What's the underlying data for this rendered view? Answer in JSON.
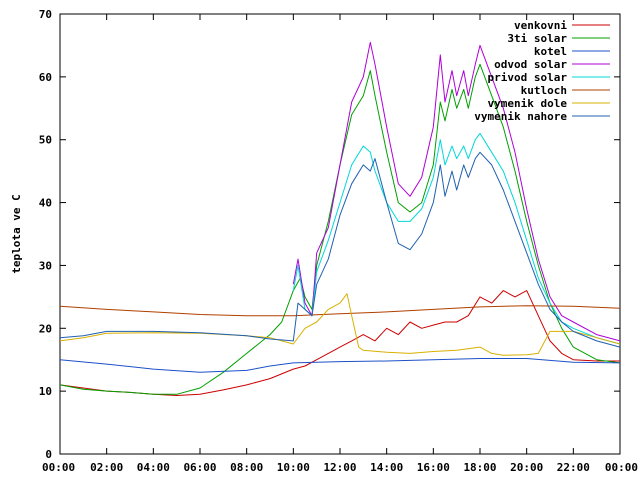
{
  "chart_data": {
    "type": "line",
    "title": "",
    "xlabel": "",
    "ylabel": "teplota ve C",
    "xlim": [
      0,
      24
    ],
    "ylim": [
      0,
      70
    ],
    "grid": false,
    "legend_position": "top-right",
    "x_tick_labels": [
      "00:00",
      "02:00",
      "04:00",
      "06:00",
      "08:00",
      "10:00",
      "12:00",
      "14:00",
      "16:00",
      "18:00",
      "20:00",
      "22:00",
      "00:00"
    ],
    "y_tick_labels": [
      "0",
      "10",
      "20",
      "30",
      "40",
      "50",
      "60",
      "70"
    ],
    "series": [
      {
        "name": "venkovni",
        "color": "#cc0000",
        "points": [
          [
            0,
            11
          ],
          [
            1,
            10.5
          ],
          [
            2,
            10
          ],
          [
            3,
            9.8
          ],
          [
            4,
            9.5
          ],
          [
            5,
            9.3
          ],
          [
            6,
            9.5
          ],
          [
            7,
            10.2
          ],
          [
            8,
            11
          ],
          [
            9,
            12
          ],
          [
            10,
            13.5
          ],
          [
            10.5,
            14
          ],
          [
            11,
            15
          ],
          [
            11.5,
            16
          ],
          [
            12,
            17
          ],
          [
            12.5,
            18
          ],
          [
            13,
            19
          ],
          [
            13.5,
            18
          ],
          [
            14,
            20
          ],
          [
            14.5,
            19
          ],
          [
            15,
            21
          ],
          [
            15.5,
            20
          ],
          [
            16,
            20.5
          ],
          [
            16.5,
            21
          ],
          [
            17,
            21
          ],
          [
            17.5,
            22
          ],
          [
            18,
            25
          ],
          [
            18.5,
            24
          ],
          [
            19,
            26
          ],
          [
            19.5,
            25
          ],
          [
            20,
            26
          ],
          [
            20.5,
            22
          ],
          [
            21,
            18
          ],
          [
            21.5,
            16
          ],
          [
            22,
            15
          ],
          [
            23,
            14.8
          ],
          [
            24,
            14.8
          ]
        ]
      },
      {
        "name": "3ti solar",
        "color": "#00a000",
        "points": [
          [
            0,
            11
          ],
          [
            1,
            10.3
          ],
          [
            2,
            10
          ],
          [
            3,
            9.8
          ],
          [
            4,
            9.5
          ],
          [
            5,
            9.5
          ],
          [
            6,
            10.5
          ],
          [
            7,
            13
          ],
          [
            8,
            16
          ],
          [
            9,
            19
          ],
          [
            9.5,
            21
          ],
          [
            10,
            26
          ],
          [
            10.3,
            28
          ],
          [
            10.5,
            25
          ],
          [
            10.8,
            23
          ],
          [
            11,
            30
          ],
          [
            11.5,
            37
          ],
          [
            12,
            46
          ],
          [
            12.5,
            54
          ],
          [
            13,
            57
          ],
          [
            13.3,
            61
          ],
          [
            13.5,
            57
          ],
          [
            14,
            48
          ],
          [
            14.5,
            40
          ],
          [
            15,
            38.5
          ],
          [
            15.5,
            40
          ],
          [
            16,
            46
          ],
          [
            16.3,
            56
          ],
          [
            16.5,
            53
          ],
          [
            16.8,
            58
          ],
          [
            17,
            55
          ],
          [
            17.3,
            58
          ],
          [
            17.5,
            55
          ],
          [
            17.8,
            60
          ],
          [
            18,
            62
          ],
          [
            18.5,
            57
          ],
          [
            19,
            52
          ],
          [
            19.5,
            45
          ],
          [
            20,
            37
          ],
          [
            20.5,
            30
          ],
          [
            21,
            24
          ],
          [
            21.5,
            20
          ],
          [
            22,
            17
          ],
          [
            23,
            15
          ],
          [
            24,
            14.5
          ]
        ]
      },
      {
        "name": "kotel",
        "color": "#1e50c8",
        "points": [
          [
            0,
            15
          ],
          [
            2,
            14.3
          ],
          [
            4,
            13.5
          ],
          [
            6,
            13
          ],
          [
            8,
            13.3
          ],
          [
            9,
            14
          ],
          [
            10,
            14.5
          ],
          [
            11,
            14.6
          ],
          [
            12,
            14.7
          ],
          [
            14,
            14.8
          ],
          [
            16,
            15
          ],
          [
            18,
            15.2
          ],
          [
            20,
            15.2
          ],
          [
            22,
            14.6
          ],
          [
            24,
            14.5
          ]
        ]
      },
      {
        "name": "odvod solar",
        "color": "#b000d8",
        "points": [
          [
            10,
            27
          ],
          [
            10.2,
            31
          ],
          [
            10.5,
            24
          ],
          [
            10.8,
            22
          ],
          [
            11,
            32
          ],
          [
            11.5,
            36
          ],
          [
            12,
            46
          ],
          [
            12.5,
            56
          ],
          [
            13,
            60
          ],
          [
            13.3,
            65.5
          ],
          [
            13.5,
            62
          ],
          [
            14,
            52
          ],
          [
            14.5,
            43
          ],
          [
            15,
            41
          ],
          [
            15.5,
            44
          ],
          [
            16,
            52
          ],
          [
            16.3,
            63.5
          ],
          [
            16.5,
            56
          ],
          [
            16.8,
            61
          ],
          [
            17,
            57
          ],
          [
            17.3,
            61
          ],
          [
            17.5,
            57
          ],
          [
            17.8,
            62
          ],
          [
            18,
            65
          ],
          [
            18.5,
            60
          ],
          [
            19,
            55
          ],
          [
            19.5,
            48
          ],
          [
            20,
            39
          ],
          [
            20.5,
            31
          ],
          [
            21,
            25
          ],
          [
            21.5,
            22
          ],
          [
            22,
            21
          ],
          [
            23,
            19
          ],
          [
            24,
            18
          ]
        ]
      },
      {
        "name": "privod solar",
        "color": "#00d8d8",
        "points": [
          [
            10,
            26
          ],
          [
            10.2,
            30
          ],
          [
            10.5,
            23
          ],
          [
            10.8,
            22
          ],
          [
            11,
            29
          ],
          [
            11.5,
            34
          ],
          [
            12,
            40
          ],
          [
            12.5,
            46
          ],
          [
            13,
            49
          ],
          [
            13.3,
            48
          ],
          [
            13.5,
            45
          ],
          [
            14,
            40
          ],
          [
            14.5,
            37
          ],
          [
            15,
            37
          ],
          [
            15.5,
            39
          ],
          [
            16,
            44
          ],
          [
            16.3,
            50
          ],
          [
            16.5,
            46
          ],
          [
            16.8,
            49
          ],
          [
            17,
            47
          ],
          [
            17.3,
            49
          ],
          [
            17.5,
            47
          ],
          [
            17.8,
            50
          ],
          [
            18,
            51
          ],
          [
            18.5,
            48
          ],
          [
            19,
            45
          ],
          [
            19.5,
            40
          ],
          [
            20,
            34
          ],
          [
            20.5,
            28
          ],
          [
            21,
            24
          ],
          [
            21.5,
            21
          ],
          [
            22,
            20
          ],
          [
            23,
            18.5
          ],
          [
            24,
            17.5
          ]
        ]
      },
      {
        "name": "kutloch",
        "color": "#b04000",
        "points": [
          [
            0,
            23.5
          ],
          [
            2,
            23
          ],
          [
            4,
            22.6
          ],
          [
            6,
            22.2
          ],
          [
            8,
            22
          ],
          [
            10,
            22
          ],
          [
            12,
            22.3
          ],
          [
            14,
            22.6
          ],
          [
            16,
            23
          ],
          [
            18,
            23.4
          ],
          [
            20,
            23.6
          ],
          [
            22,
            23.5
          ],
          [
            24,
            23.2
          ]
        ]
      },
      {
        "name": "vymenik dole",
        "color": "#d8b000",
        "points": [
          [
            0,
            18
          ],
          [
            1,
            18.5
          ],
          [
            2,
            19.2
          ],
          [
            4,
            19.3
          ],
          [
            6,
            19.2
          ],
          [
            8,
            18.8
          ],
          [
            9,
            18.5
          ],
          [
            10,
            17.5
          ],
          [
            10.5,
            20
          ],
          [
            11,
            21
          ],
          [
            11.5,
            23
          ],
          [
            12,
            24
          ],
          [
            12.3,
            25.5
          ],
          [
            12.5,
            22
          ],
          [
            12.8,
            17
          ],
          [
            13,
            16.5
          ],
          [
            14,
            16.2
          ],
          [
            15,
            16
          ],
          [
            16,
            16.3
          ],
          [
            17,
            16.5
          ],
          [
            18,
            17
          ],
          [
            18.5,
            16
          ],
          [
            19,
            15.7
          ],
          [
            20,
            15.8
          ],
          [
            20.5,
            16
          ],
          [
            21,
            19.5
          ],
          [
            22,
            19.5
          ],
          [
            23,
            18.5
          ],
          [
            24,
            17.5
          ]
        ]
      },
      {
        "name": "vymenik nahore",
        "color": "#2060b0",
        "points": [
          [
            0,
            18.5
          ],
          [
            1,
            18.8
          ],
          [
            2,
            19.5
          ],
          [
            4,
            19.5
          ],
          [
            6,
            19.3
          ],
          [
            8,
            18.8
          ],
          [
            9,
            18.3
          ],
          [
            10,
            18
          ],
          [
            10.2,
            24
          ],
          [
            10.5,
            23
          ],
          [
            10.8,
            22
          ],
          [
            11,
            27
          ],
          [
            11.5,
            31
          ],
          [
            12,
            38
          ],
          [
            12.5,
            43
          ],
          [
            13,
            46
          ],
          [
            13.3,
            45
          ],
          [
            13.5,
            47
          ],
          [
            14,
            40
          ],
          [
            14.5,
            33.5
          ],
          [
            15,
            32.5
          ],
          [
            15.5,
            35
          ],
          [
            16,
            40
          ],
          [
            16.3,
            46
          ],
          [
            16.5,
            41
          ],
          [
            16.8,
            45
          ],
          [
            17,
            42
          ],
          [
            17.3,
            46
          ],
          [
            17.5,
            44
          ],
          [
            17.8,
            47
          ],
          [
            18,
            48
          ],
          [
            18.5,
            46
          ],
          [
            19,
            42
          ],
          [
            19.5,
            37
          ],
          [
            20,
            32
          ],
          [
            20.5,
            27
          ],
          [
            21,
            23
          ],
          [
            21.5,
            21
          ],
          [
            22,
            19.5
          ],
          [
            23,
            18
          ],
          [
            24,
            17
          ]
        ]
      }
    ]
  }
}
